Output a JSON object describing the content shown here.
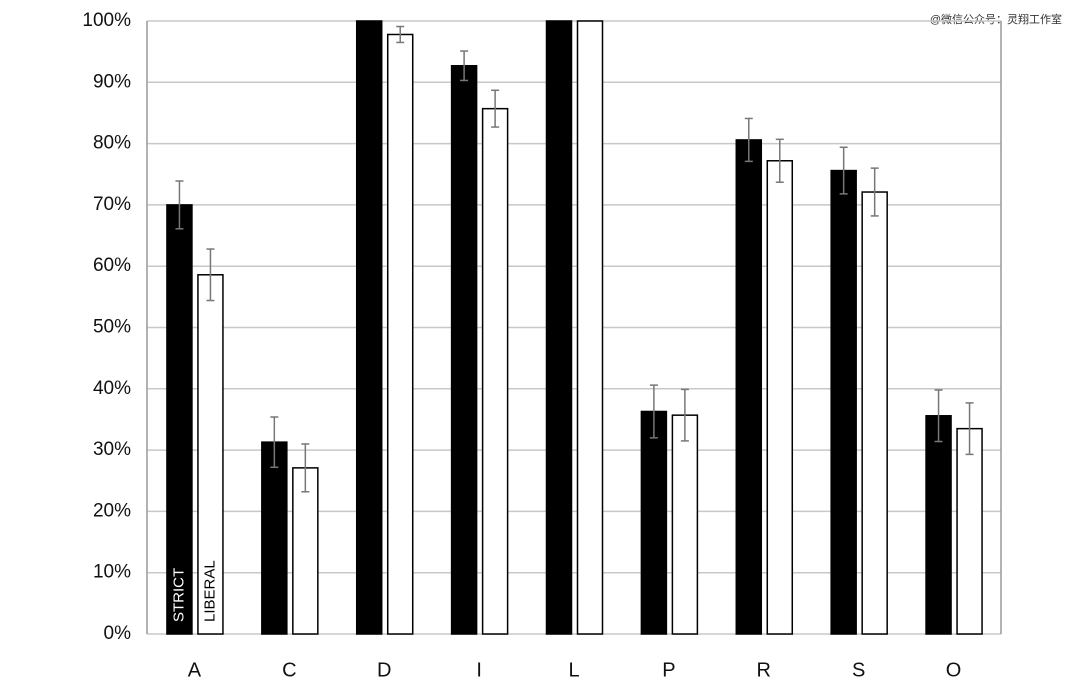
{
  "chart_data": {
    "type": "bar",
    "categories": [
      "A",
      "C",
      "D",
      "I",
      "L",
      "P",
      "R",
      "S",
      "O"
    ],
    "series": [
      {
        "name": "STRICT",
        "color": "#000000",
        "values": [
          70,
          31.3,
          100,
          92.7,
          100,
          36.3,
          80.6,
          75.6,
          35.6
        ],
        "errors": [
          3.9,
          4.1,
          null,
          2.4,
          null,
          4.3,
          3.5,
          3.8,
          4.2
        ]
      },
      {
        "name": "LIBERAL",
        "color": "#ffffff",
        "values": [
          58.6,
          27.1,
          97.8,
          85.7,
          100,
          35.7,
          77.2,
          72.1,
          33.5
        ],
        "errors": [
          4.2,
          3.9,
          1.3,
          3.0,
          null,
          4.2,
          3.5,
          3.9,
          4.2
        ]
      }
    ],
    "ylim": [
      0,
      100
    ],
    "yticks": [
      {
        "value": 0,
        "label": "0%"
      },
      {
        "value": 10,
        "label": "10%"
      },
      {
        "value": 20,
        "label": "20%"
      },
      {
        "value": 30,
        "label": "30%"
      },
      {
        "value": 40,
        "label": "40%"
      },
      {
        "value": 50,
        "label": "50%"
      },
      {
        "value": 60,
        "label": "60%"
      },
      {
        "value": 70,
        "label": "70%"
      },
      {
        "value": 80,
        "label": "80%"
      },
      {
        "value": 90,
        "label": "90%"
      },
      {
        "value": 100,
        "label": "100%"
      }
    ],
    "grid": true,
    "watermark": "@微信公众号：灵翔工作室"
  }
}
